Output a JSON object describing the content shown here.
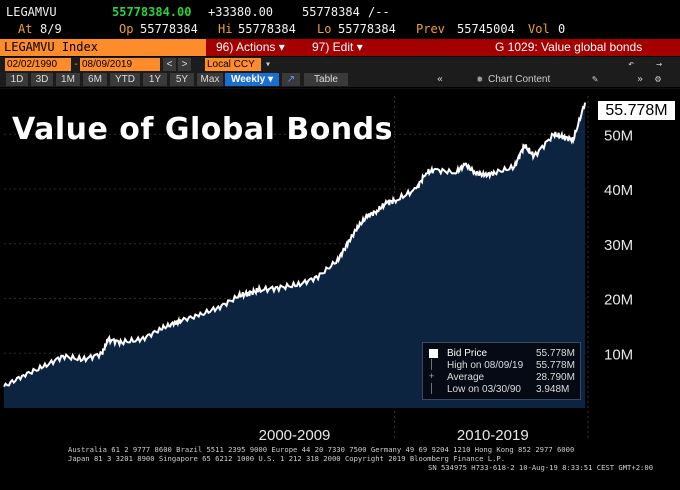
{
  "quote": {
    "ticker": "LEGAMVU",
    "last": "55778384.00",
    "change": "+33380.00",
    "bid": "55778384",
    "bid_suffix": "/--",
    "at_label": "At",
    "at_value": "8/9",
    "op_label": "Op",
    "op_value": "55778384",
    "hi_label": "Hi",
    "hi_value": "55778384",
    "lo_label": "Lo",
    "lo_value": "55778384",
    "prev_label": "Prev",
    "prev_value": "55745004",
    "vol_label": "Vol",
    "vol_value": "0"
  },
  "header": {
    "security": "LEGAMVU Index",
    "actions": "96) Actions ▾",
    "edit": "97) Edit ▾",
    "page": "G 1029: Value global bonds"
  },
  "toolbar": {
    "start_date": "02/02/1990",
    "end_date": "08/09/2019",
    "currency": "Local CCY",
    "periods": [
      "1D",
      "3D",
      "1M",
      "6M",
      "YTD",
      "1Y",
      "5Y",
      "Max"
    ],
    "frequency": "Weekly ▾",
    "table_label": "Table",
    "chart_content_label": "Chart Content"
  },
  "overlay_title": "Value of Global Bonds",
  "last_value_label": "55.778M",
  "colors": {
    "area_fill": "#0c2440",
    "line": "#ffffff",
    "header_red": "#a40000",
    "ticker_orange": "#ff8c2a",
    "price_green": "#28d23c"
  },
  "chart_data": {
    "type": "area",
    "series": [
      {
        "name": "Bid Price",
        "x": [
          1990.0,
          1991.0,
          1992.0,
          1993.0,
          1994.0,
          1995.0,
          1995.3,
          1996.0,
          1997.0,
          1998.0,
          1998.7,
          1999.0,
          2000.0,
          2001.0,
          2002.0,
          2002.5,
          2003.0,
          2004.0,
          2005.0,
          2006.0,
          2007.0,
          2007.5,
          2008.0,
          2008.5,
          2009.0,
          2009.5,
          2010.0,
          2011.0,
          2011.5,
          2012.0,
          2013.0,
          2013.5,
          2014.0,
          2014.5,
          2015.0,
          2016.0,
          2016.5,
          2017.0,
          2018.0,
          2018.5,
          2019.0,
          2019.6
        ],
        "y": [
          3.9,
          6.0,
          7.5,
          9.5,
          8.8,
          10.0,
          12.5,
          12.0,
          12.5,
          14.5,
          15.5,
          16.0,
          17.0,
          18.5,
          20.5,
          21.0,
          21.5,
          22.0,
          22.5,
          24.0,
          27.0,
          30.0,
          33.0,
          35.0,
          36.0,
          37.5,
          38.0,
          40.0,
          43.0,
          43.5,
          43.0,
          44.5,
          43.0,
          42.5,
          43.0,
          44.0,
          48.0,
          46.0,
          50.0,
          49.5,
          49.0,
          55.8
        ]
      }
    ],
    "x_labels": [
      "2000-2009",
      "2010-2019"
    ],
    "y_ticks": [
      "10M",
      "20M",
      "30M",
      "40M",
      "50M"
    ],
    "y_tick_values": [
      10,
      20,
      30,
      40,
      50
    ],
    "ylim": [
      0,
      57
    ],
    "xlim": [
      1990.0,
      2019.75
    ],
    "y_axis_side": "right",
    "legend": [
      {
        "label": "Bid Price",
        "value": "55.778M"
      },
      {
        "label": "High on 08/09/19",
        "value": "55.778M"
      },
      {
        "label": "Average",
        "value": "28.790M"
      },
      {
        "label": "Low on 03/30/90",
        "value": "3.948M"
      }
    ],
    "legend_placement": "bottom-right"
  },
  "footer": {
    "line1": "Australia 61 2 9777 8600 Brazil 5511 2395 9000 Europe 44 20 7330 7500 Germany 49 69 9204 1210 Hong Kong 852 2977 6000",
    "line2": "Japan 81 3 3201 8900      Singapore 65 6212 1000      U.S. 1 212 318 2000      Copyright 2019 Bloomberg Finance L.P.",
    "line3": "SN 534975 H733-618-2 10-Aug-19  8:33:51 CEST GMT+2:00"
  }
}
